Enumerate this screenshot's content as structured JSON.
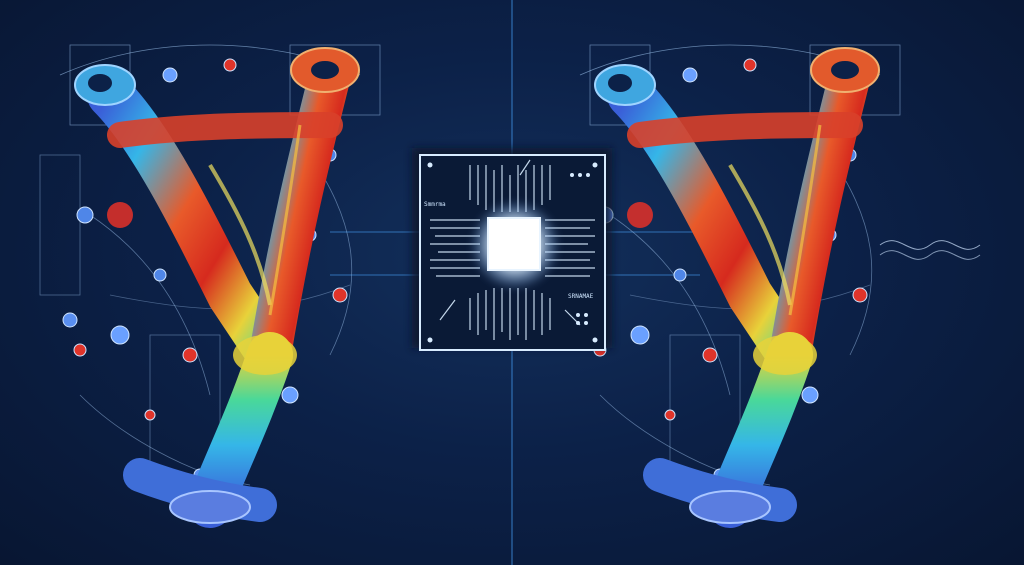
{
  "scene": {
    "background_color": "#0b1d3d",
    "accent_line_color": "#3f8fe0",
    "heatmap_colors": [
      "#3a5fd8",
      "#35b6e8",
      "#49d89a",
      "#e8d23a",
      "#e85a2a",
      "#d62a1e"
    ],
    "chip": {
      "label_top_left": "Smmrma",
      "label_bottom_right": "SRNAMAE"
    }
  }
}
